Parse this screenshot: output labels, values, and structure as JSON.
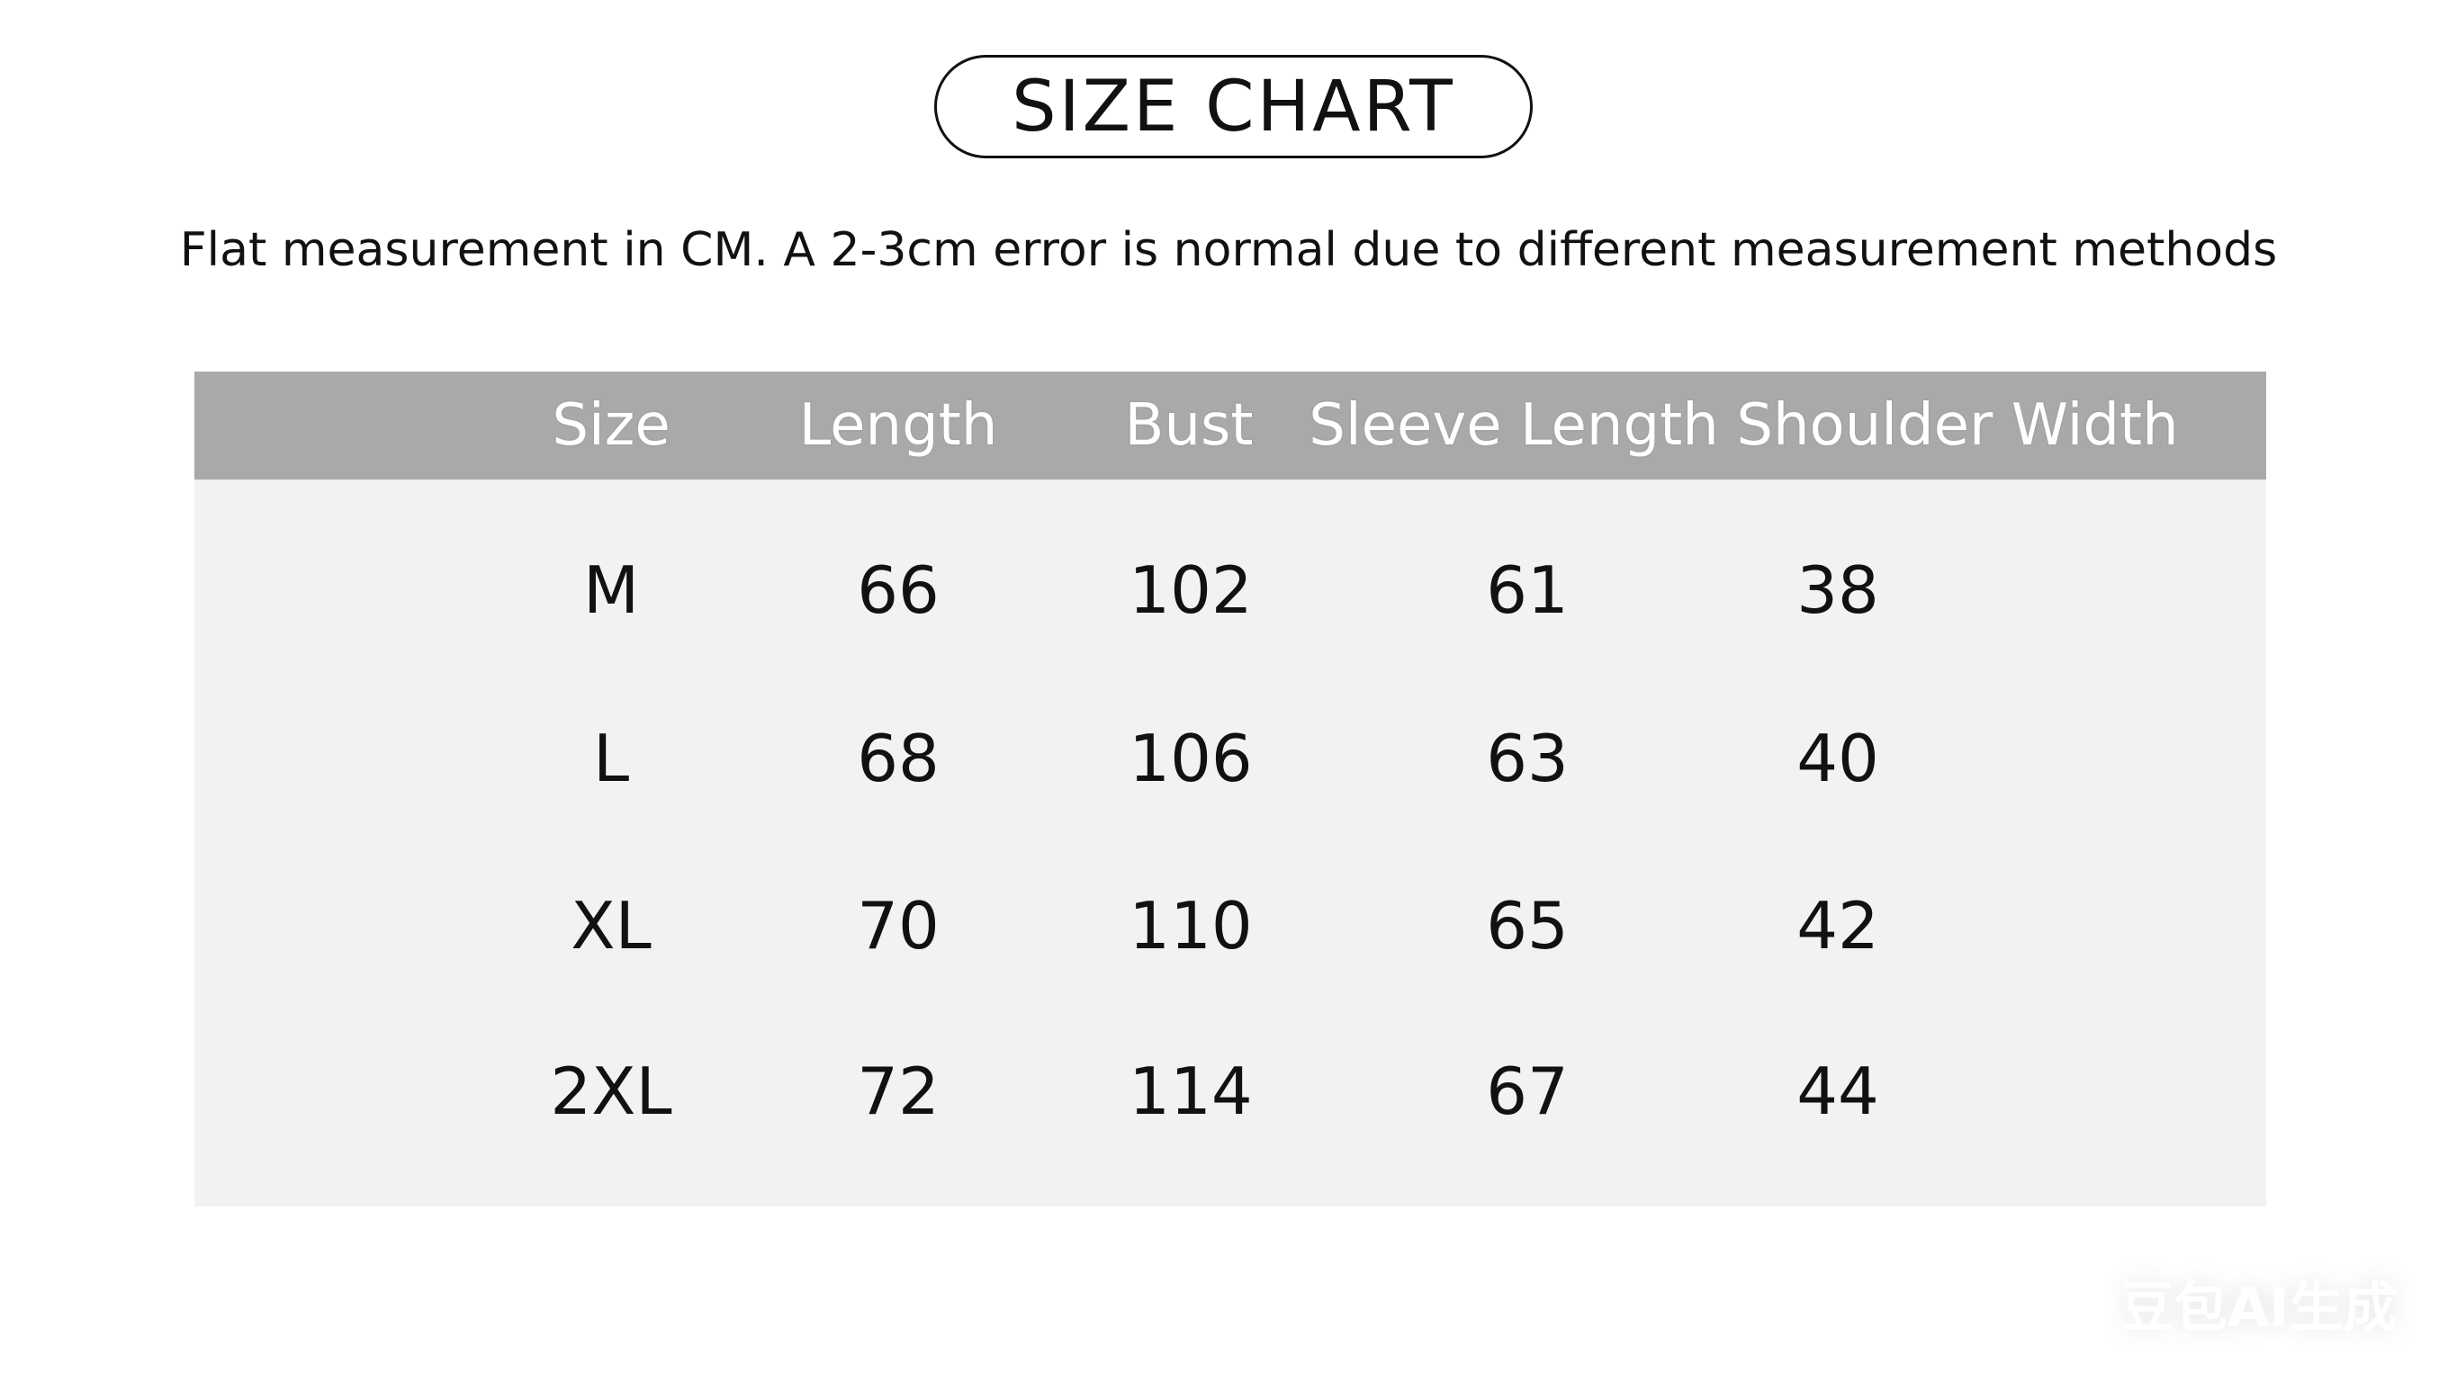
{
  "title": "SIZE CHART",
  "subtitle": "Flat measurement in CM. A 2-3cm error is normal due to different measurement methods",
  "table": {
    "headers": [
      "Size",
      "Length",
      "Bust",
      "Sleeve Length",
      "Shoulder Width"
    ],
    "rows": [
      [
        "M",
        "66",
        "102",
        "61",
        "38"
      ],
      [
        "L",
        "68",
        "106",
        "63",
        "40"
      ],
      [
        "XL",
        "70",
        "110",
        "65",
        "42"
      ],
      [
        "2XL",
        "72",
        "114",
        "67",
        "44"
      ]
    ]
  },
  "colors": {
    "header_bg": "#a9a9a9",
    "body_bg": "#f2f2f2",
    "header_text": "#ffffff"
  },
  "watermark": "豆包AI生成"
}
